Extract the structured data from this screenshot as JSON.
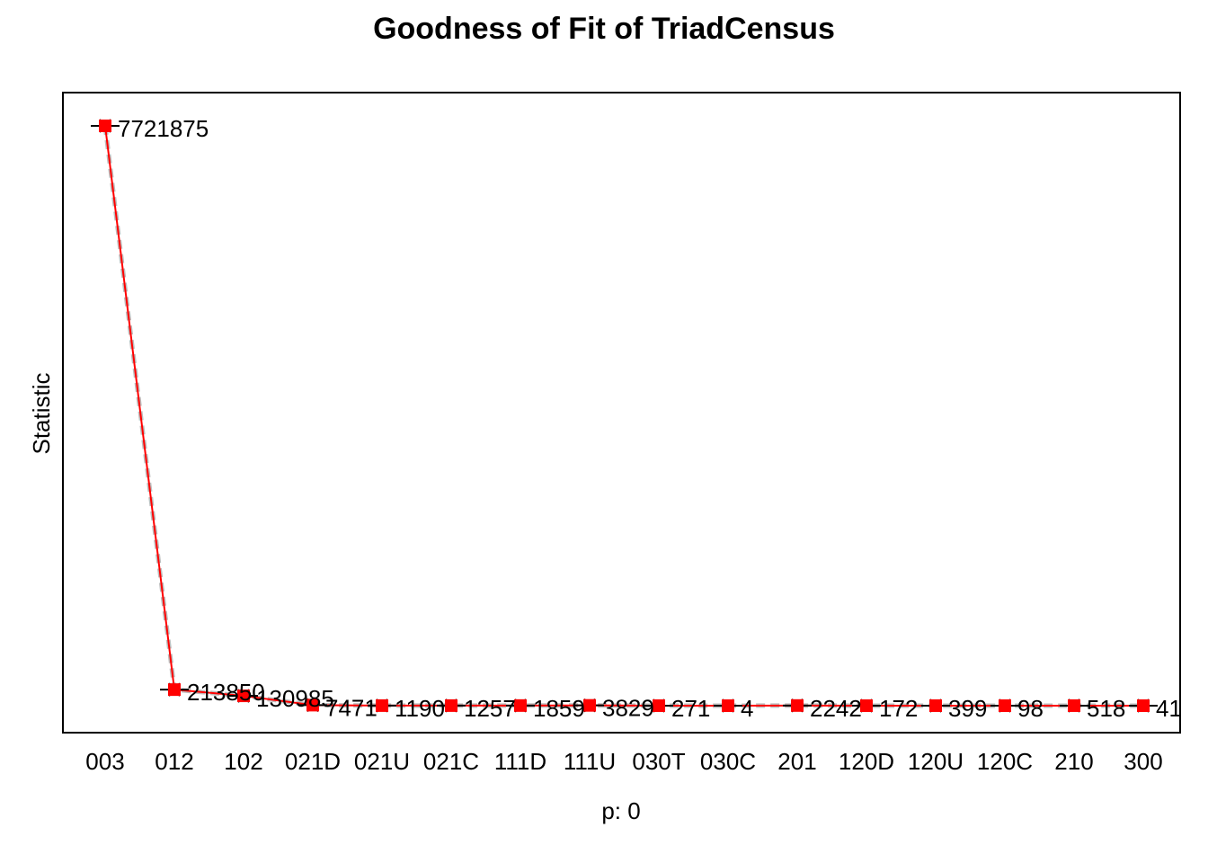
{
  "chart_data": {
    "type": "line",
    "title": "Goodness of Fit of TriadCensus",
    "xlabel": "p: 0",
    "ylabel": "Statistic",
    "categories": [
      "003",
      "012",
      "102",
      "021D",
      "021U",
      "021C",
      "111D",
      "111U",
      "030T",
      "030C",
      "201",
      "120D",
      "120U",
      "120C",
      "210",
      "300"
    ],
    "series": [
      {
        "values": [
          7721875,
          213850,
          130985,
          7471,
          1190,
          1257,
          1859,
          3829,
          271,
          4,
          2242,
          172,
          399,
          98,
          518,
          41
        ],
        "color": "#ff0000",
        "marker": "filled-square"
      }
    ],
    "observed_marker_color": "#000000",
    "observed_marker": "cross",
    "grid": false,
    "legend": "none"
  }
}
